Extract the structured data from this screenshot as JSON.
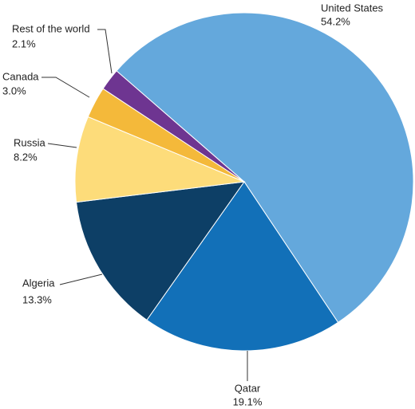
{
  "chart_data": {
    "type": "pie",
    "categories": [
      "United States",
      "Qatar",
      "Algeria",
      "Russia",
      "Canada",
      "Rest of the world"
    ],
    "values": [
      54.2,
      19.1,
      13.3,
      8.2,
      3.0,
      2.1
    ],
    "value_labels": [
      "54.2%",
      "19.1%",
      "13.3%",
      "8.2%",
      "3.0%",
      "2.1%"
    ],
    "colors": [
      "#64a8dc",
      "#1270b8",
      "#0d3f66",
      "#fddc7a",
      "#f4b93a",
      "#6e3591"
    ]
  }
}
